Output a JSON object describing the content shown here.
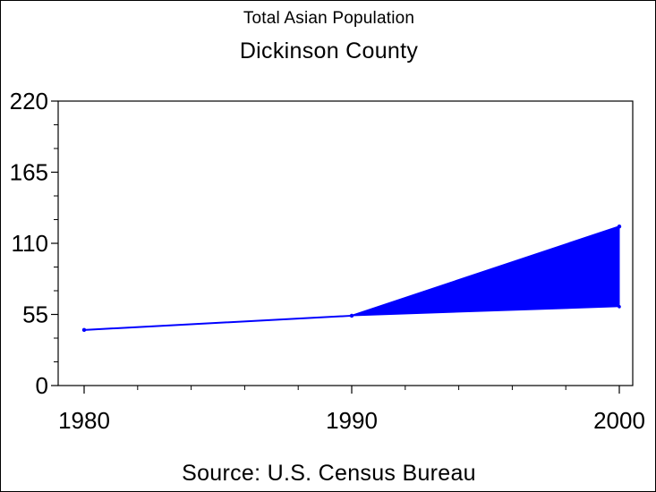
{
  "chart_data": {
    "type": "area",
    "subtitle": "Total Asian Population",
    "title": "Dickinson County",
    "source": "Source: U.S. Census Bureau",
    "xlabel": "",
    "ylabel": "",
    "x": [
      1980,
      1990,
      2000
    ],
    "xlim": [
      1980,
      2000
    ],
    "ylim": [
      0,
      220
    ],
    "yticks": [
      0,
      55,
      110,
      165,
      220
    ],
    "xticks": [
      1980,
      1990,
      2000
    ],
    "series": [
      {
        "values": [
          43,
          54,
          123
        ]
      }
    ],
    "area_lower_boundary": [
      43,
      54,
      61
    ],
    "color": "#0000ff",
    "grid": false
  }
}
